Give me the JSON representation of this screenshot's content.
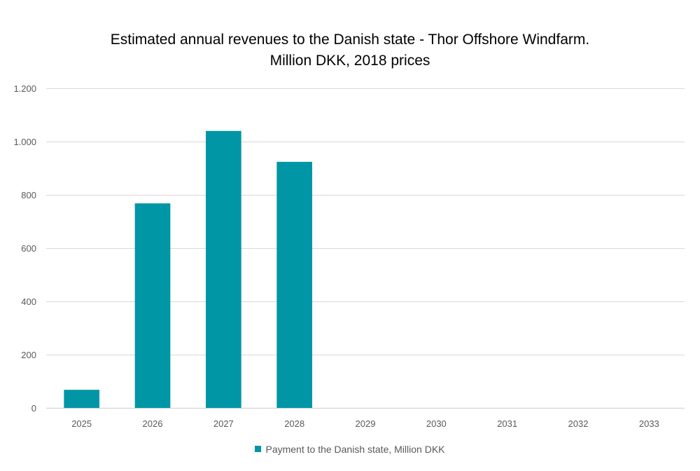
{
  "chart_data": {
    "type": "bar",
    "title": "Estimated annual revenues to the Danish state - Thor Offshore Windfarm.",
    "subtitle": "Million DKK, 2018 prices",
    "categories": [
      "2025",
      "2026",
      "2027",
      "2028",
      "2029",
      "2030",
      "2031",
      "2032",
      "2033"
    ],
    "series": [
      {
        "name": "Payment to the Danish state, Million DKK",
        "color": "#0096A5",
        "values": [
          68,
          768,
          1040,
          924,
          0,
          0,
          0,
          0,
          0
        ]
      }
    ],
    "xlabel": "",
    "ylabel": "",
    "ylim": [
      0,
      1200
    ],
    "yticks": [
      0,
      200,
      400,
      600,
      800,
      1000,
      1200
    ],
    "ytick_labels": [
      "0",
      "200",
      "400",
      "600",
      "800",
      "1.000",
      "1.200"
    ],
    "grid": true,
    "legend_position": "bottom"
  }
}
